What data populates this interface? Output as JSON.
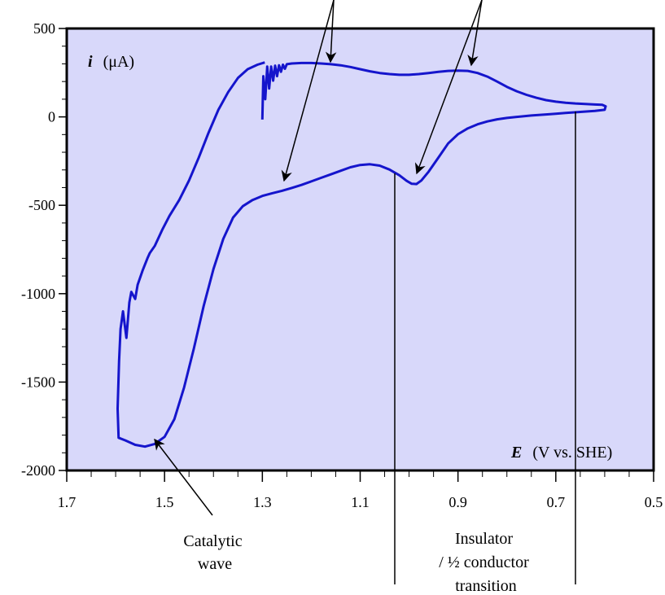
{
  "chart_data": {
    "type": "line",
    "title": "",
    "ylabel": {
      "symbol": "i",
      "unit": "(μA)"
    },
    "xlabel": {
      "symbol": "E",
      "unit": "(V vs. SHE)"
    },
    "xlim": [
      1.7,
      0.5
    ],
    "ylim": [
      -2000,
      500
    ],
    "x_reversed": true,
    "x_ticks": [
      1.7,
      1.5,
      1.3,
      1.1,
      0.9,
      0.7,
      0.5
    ],
    "x_tick_labels": [
      "1.7",
      "1.5",
      "1.3",
      "1.1",
      "0.9",
      "0.7",
      "0.5"
    ],
    "y_ticks": [
      500,
      0,
      -500,
      -1000,
      -1500,
      -2000
    ],
    "y_tick_labels": [
      "500",
      "0",
      "-500",
      "-1000",
      "-1500",
      "-2000"
    ],
    "plot_background": "#d8d8fa",
    "series": [
      {
        "color": "#1515cc",
        "points": [
          [
            1.3,
            -15
          ],
          [
            1.298,
            230
          ],
          [
            1.294,
            100
          ],
          [
            1.29,
            285
          ],
          [
            1.286,
            160
          ],
          [
            1.282,
            285
          ],
          [
            1.278,
            205
          ],
          [
            1.274,
            290
          ],
          [
            1.27,
            230
          ],
          [
            1.266,
            292
          ],
          [
            1.262,
            255
          ],
          [
            1.258,
            295
          ],
          [
            1.254,
            272
          ],
          [
            1.25,
            298
          ],
          [
            1.24,
            302
          ],
          [
            1.22,
            305
          ],
          [
            1.2,
            305
          ],
          [
            1.18,
            302
          ],
          [
            1.16,
            298
          ],
          [
            1.14,
            292
          ],
          [
            1.12,
            282
          ],
          [
            1.1,
            270
          ],
          [
            1.08,
            258
          ],
          [
            1.06,
            248
          ],
          [
            1.04,
            242
          ],
          [
            1.02,
            238
          ],
          [
            1.0,
            238
          ],
          [
            0.98,
            242
          ],
          [
            0.96,
            248
          ],
          [
            0.94,
            255
          ],
          [
            0.92,
            260
          ],
          [
            0.9,
            262
          ],
          [
            0.88,
            260
          ],
          [
            0.86,
            248
          ],
          [
            0.84,
            228
          ],
          [
            0.82,
            200
          ],
          [
            0.8,
            170
          ],
          [
            0.78,
            145
          ],
          [
            0.76,
            125
          ],
          [
            0.74,
            108
          ],
          [
            0.72,
            95
          ],
          [
            0.7,
            86
          ],
          [
            0.68,
            80
          ],
          [
            0.66,
            76
          ],
          [
            0.64,
            73
          ],
          [
            0.62,
            70
          ],
          [
            0.605,
            68
          ],
          [
            0.598,
            60
          ],
          [
            0.6,
            40
          ],
          [
            0.62,
            34
          ],
          [
            0.65,
            28
          ],
          [
            0.68,
            22
          ],
          [
            0.7,
            18
          ],
          [
            0.72,
            14
          ],
          [
            0.75,
            8
          ],
          [
            0.78,
            0
          ],
          [
            0.8,
            -6
          ],
          [
            0.82,
            -14
          ],
          [
            0.84,
            -26
          ],
          [
            0.86,
            -42
          ],
          [
            0.88,
            -65
          ],
          [
            0.9,
            -98
          ],
          [
            0.92,
            -150
          ],
          [
            0.94,
            -230
          ],
          [
            0.96,
            -310
          ],
          [
            0.975,
            -360
          ],
          [
            0.985,
            -380
          ],
          [
            0.995,
            -378
          ],
          [
            1.005,
            -362
          ],
          [
            1.02,
            -330
          ],
          [
            1.04,
            -298
          ],
          [
            1.06,
            -276
          ],
          [
            1.08,
            -268
          ],
          [
            1.1,
            -272
          ],
          [
            1.12,
            -285
          ],
          [
            1.14,
            -305
          ],
          [
            1.16,
            -325
          ],
          [
            1.18,
            -345
          ],
          [
            1.2,
            -365
          ],
          [
            1.22,
            -385
          ],
          [
            1.24,
            -402
          ],
          [
            1.26,
            -418
          ],
          [
            1.28,
            -432
          ],
          [
            1.3,
            -447
          ],
          [
            1.32,
            -470
          ],
          [
            1.34,
            -505
          ],
          [
            1.36,
            -570
          ],
          [
            1.38,
            -690
          ],
          [
            1.4,
            -860
          ],
          [
            1.42,
            -1070
          ],
          [
            1.44,
            -1310
          ],
          [
            1.46,
            -1530
          ],
          [
            1.48,
            -1710
          ],
          [
            1.5,
            -1810
          ],
          [
            1.52,
            -1850
          ],
          [
            1.54,
            -1865
          ],
          [
            1.56,
            -1855
          ],
          [
            1.58,
            -1830
          ],
          [
            1.594,
            -1815
          ],
          [
            1.596,
            -1650
          ],
          [
            1.593,
            -1380
          ],
          [
            1.59,
            -1200
          ],
          [
            1.585,
            -1100
          ],
          [
            1.578,
            -1250
          ],
          [
            1.572,
            -1050
          ],
          [
            1.568,
            -990
          ],
          [
            1.56,
            -1030
          ],
          [
            1.555,
            -950
          ],
          [
            1.545,
            -870
          ],
          [
            1.535,
            -800
          ],
          [
            1.53,
            -770
          ],
          [
            1.52,
            -730
          ],
          [
            1.505,
            -640
          ],
          [
            1.49,
            -560
          ],
          [
            1.47,
            -470
          ],
          [
            1.45,
            -360
          ],
          [
            1.43,
            -230
          ],
          [
            1.41,
            -90
          ],
          [
            1.39,
            40
          ],
          [
            1.37,
            140
          ],
          [
            1.35,
            220
          ],
          [
            1.33,
            270
          ],
          [
            1.31,
            295
          ],
          [
            1.295,
            308
          ]
        ]
      }
    ],
    "annotations": [
      {
        "text_lines": [
          "Catalytic",
          "wave"
        ]
      },
      {
        "text_lines": [
          "Insulator",
          "/ ½ conductor",
          "transition"
        ]
      }
    ]
  }
}
